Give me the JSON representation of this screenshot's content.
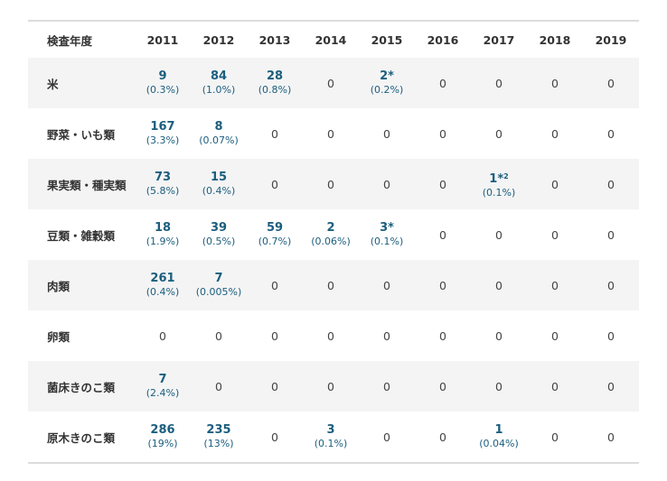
{
  "header": {
    "label": "検査年度",
    "years": [
      "2011",
      "2012",
      "2013",
      "2014",
      "2015",
      "2016",
      "2017",
      "2018",
      "2019"
    ]
  },
  "rows": [
    {
      "label": "米",
      "cells": [
        {
          "v": "9",
          "p": "(0.3%)"
        },
        {
          "v": "84",
          "p": "(1.0%)"
        },
        {
          "v": "28",
          "p": "(0.8%)"
        },
        {
          "v": "0"
        },
        {
          "v": "2",
          "mark": "*",
          "p": "(0.2%)"
        },
        {
          "v": "0"
        },
        {
          "v": "0"
        },
        {
          "v": "0"
        },
        {
          "v": "0"
        }
      ]
    },
    {
      "label": "野菜・いも類",
      "cells": [
        {
          "v": "167",
          "p": "(3.3%)"
        },
        {
          "v": "8",
          "p": "(0.07%)"
        },
        {
          "v": "0"
        },
        {
          "v": "0"
        },
        {
          "v": "0"
        },
        {
          "v": "0"
        },
        {
          "v": "0"
        },
        {
          "v": "0"
        },
        {
          "v": "0"
        }
      ]
    },
    {
      "label": "果実類・種実類",
      "cells": [
        {
          "v": "73",
          "p": "(5.8%)"
        },
        {
          "v": "15",
          "p": "(0.4%)"
        },
        {
          "v": "0"
        },
        {
          "v": "0"
        },
        {
          "v": "0"
        },
        {
          "v": "0"
        },
        {
          "v": "1",
          "mark": "*",
          "sup": "2",
          "p": "(0.1%)"
        },
        {
          "v": "0"
        },
        {
          "v": "0"
        }
      ]
    },
    {
      "label": "豆類・雑穀類",
      "cells": [
        {
          "v": "18",
          "p": "(1.9%)"
        },
        {
          "v": "39",
          "p": "(0.5%)"
        },
        {
          "v": "59",
          "p": "(0.7%)"
        },
        {
          "v": "2",
          "p": "(0.06%)"
        },
        {
          "v": "3",
          "mark": "*",
          "p": "(0.1%)"
        },
        {
          "v": "0"
        },
        {
          "v": "0"
        },
        {
          "v": "0"
        },
        {
          "v": "0"
        }
      ]
    },
    {
      "label": "肉類",
      "cells": [
        {
          "v": "261",
          "p": "(0.4%)"
        },
        {
          "v": "7",
          "p": "(0.005%)"
        },
        {
          "v": "0"
        },
        {
          "v": "0"
        },
        {
          "v": "0"
        },
        {
          "v": "0"
        },
        {
          "v": "0"
        },
        {
          "v": "0"
        },
        {
          "v": "0"
        }
      ]
    },
    {
      "label": "卵類",
      "cells": [
        {
          "v": "0"
        },
        {
          "v": "0"
        },
        {
          "v": "0"
        },
        {
          "v": "0"
        },
        {
          "v": "0"
        },
        {
          "v": "0"
        },
        {
          "v": "0"
        },
        {
          "v": "0"
        },
        {
          "v": "0"
        }
      ]
    },
    {
      "label": "菌床きのこ類",
      "cells": [
        {
          "v": "7",
          "p": "(2.4%)"
        },
        {
          "v": "0"
        },
        {
          "v": "0"
        },
        {
          "v": "0"
        },
        {
          "v": "0"
        },
        {
          "v": "0"
        },
        {
          "v": "0"
        },
        {
          "v": "0"
        },
        {
          "v": "0"
        }
      ]
    },
    {
      "label": "原木きのこ類",
      "cells": [
        {
          "v": "286",
          "p": "(19%)"
        },
        {
          "v": "235",
          "p": "(13%)"
        },
        {
          "v": "0"
        },
        {
          "v": "3",
          "p": "(0.1%)"
        },
        {
          "v": "0"
        },
        {
          "v": "0"
        },
        {
          "v": "1",
          "p": "(0.04%)"
        },
        {
          "v": "0"
        },
        {
          "v": "0"
        }
      ]
    }
  ]
}
